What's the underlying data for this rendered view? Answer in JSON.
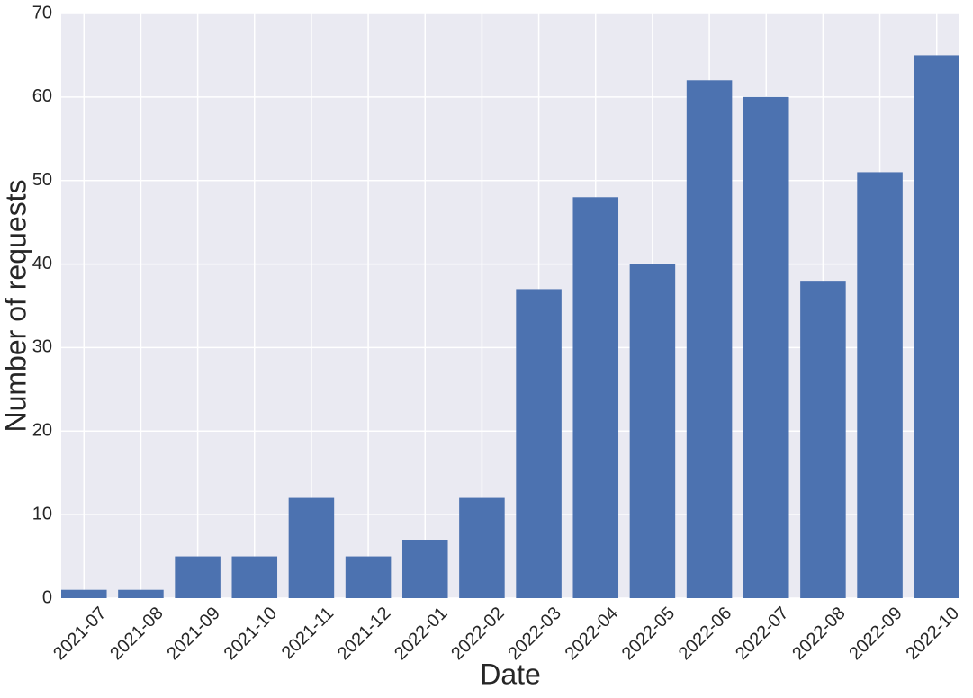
{
  "chart_data": {
    "type": "bar",
    "x_label": "Date",
    "y_label": "Number of requests",
    "categories": [
      "2021-07",
      "2021-08",
      "2021-09",
      "2021-10",
      "2021-11",
      "2021-12",
      "2022-01",
      "2022-02",
      "2022-03",
      "2022-04",
      "2022-05",
      "2022-06",
      "2022-07",
      "2022-08",
      "2022-09",
      "2022-10"
    ],
    "values": [
      1,
      1,
      5,
      5,
      12,
      5,
      7,
      12,
      37,
      48,
      40,
      62,
      60,
      38,
      51,
      65
    ],
    "color": "#4c72b0",
    "ylim": [
      0,
      70
    ],
    "yticks": [
      0,
      10,
      20,
      30,
      40,
      50,
      60,
      70
    ],
    "grid": true
  }
}
